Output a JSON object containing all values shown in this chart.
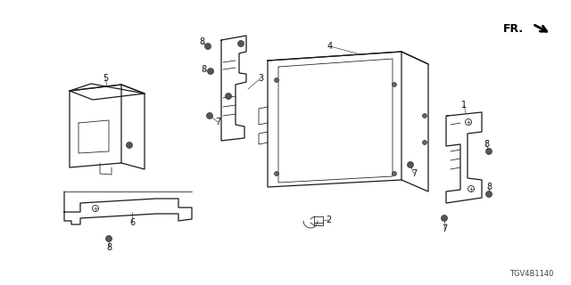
{
  "background_color": "#ffffff",
  "diagram_id": "TGV4B1140",
  "fr_label": "FR.",
  "line_color": "#1a1a1a",
  "text_color": "#111111",
  "font_size_label": 7,
  "font_size_id": 6
}
